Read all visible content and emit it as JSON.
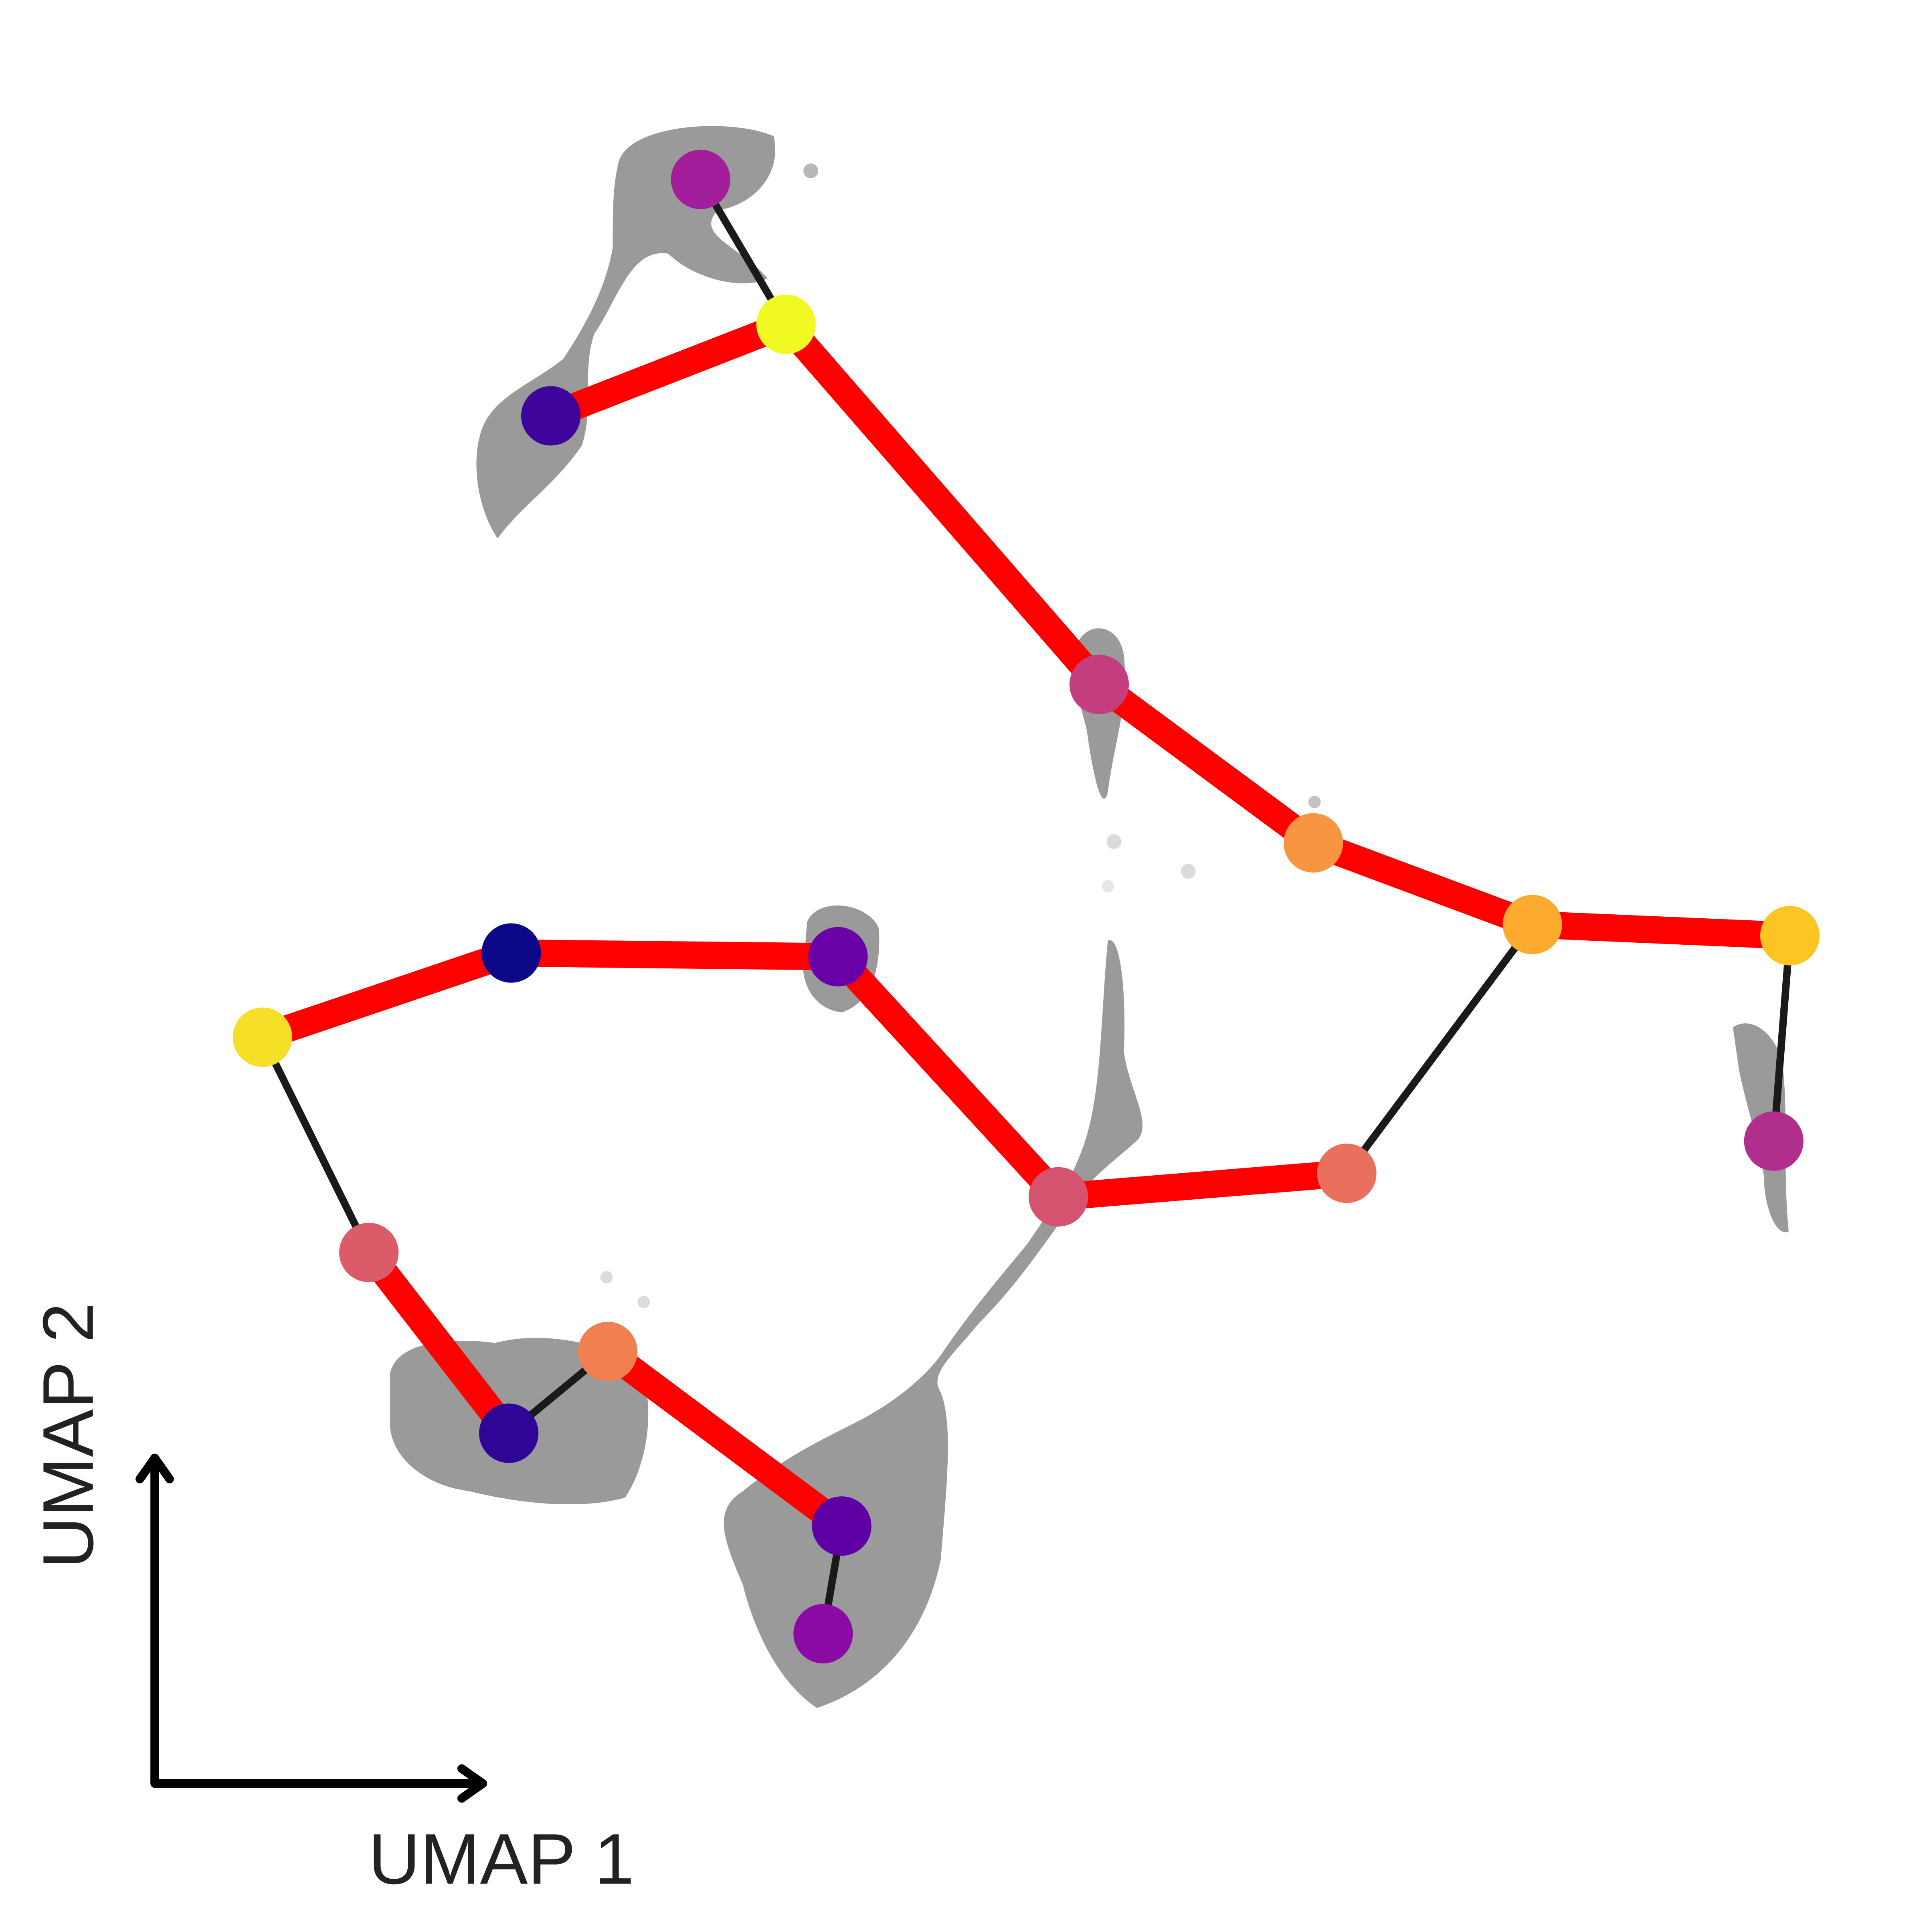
{
  "x_axis_label": "UMAP 1",
  "y_axis_label": "UMAP 2",
  "nodes": [
    {
      "color": "#a21e9b"
    },
    {
      "color": "#f0f921"
    },
    {
      "color": "#3e049c"
    },
    {
      "color": "#c43e7f"
    },
    {
      "color": "#f89540"
    },
    {
      "color": "#fcab2f"
    },
    {
      "color": "#fcc524"
    },
    {
      "color": "#b02f8d"
    },
    {
      "color": "#0d0887"
    },
    {
      "color": "#6a00a8"
    },
    {
      "color": "#f5e027"
    },
    {
      "color": "#d5536f"
    },
    {
      "color": "#e8705c"
    },
    {
      "color": "#db5c68"
    },
    {
      "color": "#f0804f"
    },
    {
      "color": "#2f0596"
    },
    {
      "color": "#5d01a6"
    },
    {
      "color": "#8b0aa5"
    }
  ],
  "edges": [
    {
      "source": 2,
      "target": 1,
      "color": "#ff0000"
    },
    {
      "source": 1,
      "target": 3,
      "color": "#ff0000"
    },
    {
      "source": 3,
      "target": 4,
      "color": "#ff0000"
    },
    {
      "source": 4,
      "target": 5,
      "color": "#ff0000"
    },
    {
      "source": 5,
      "target": 6,
      "color": "#ff0000"
    },
    {
      "source": 10,
      "target": 8,
      "color": "#ff0000"
    },
    {
      "source": 8,
      "target": 9,
      "color": "#ff0000"
    },
    {
      "source": 9,
      "target": 11,
      "color": "#ff0000"
    },
    {
      "source": 11,
      "target": 12,
      "color": "#ff0000"
    },
    {
      "source": 13,
      "target": 15,
      "color": "#ff0000"
    },
    {
      "source": 14,
      "target": 16,
      "color": "#ff0000"
    },
    {
      "source": 0,
      "target": 1,
      "color": "#1a1a1a"
    },
    {
      "source": 5,
      "target": 12,
      "color": "#1a1a1a"
    },
    {
      "source": 6,
      "target": 7,
      "color": "#1a1a1a"
    },
    {
      "source": 10,
      "target": 13,
      "color": "#1a1a1a"
    },
    {
      "source": 15,
      "target": 14,
      "color": "#1a1a1a"
    },
    {
      "source": 16,
      "target": 17,
      "color": "#1a1a1a"
    }
  ]
}
